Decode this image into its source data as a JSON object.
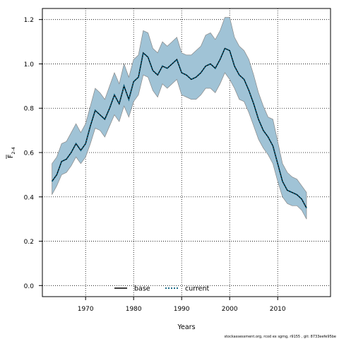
{
  "chart_data": {
    "type": "line",
    "title": "",
    "xlabel": "Years",
    "ylabel_main": "F",
    "ylabel_sub": "2-4",
    "xlim": [
      1961,
      2021
    ],
    "ylim": [
      -0.05,
      1.25
    ],
    "x_ticks": [
      1970,
      1980,
      1990,
      2000,
      2010
    ],
    "y_ticks": [
      0.0,
      0.2,
      0.4,
      0.6,
      0.8,
      1.0,
      1.2
    ],
    "y_tick_labels": [
      "0.0",
      "0.2",
      "0.4",
      "0.6",
      "0.8",
      "1.0",
      "1.2"
    ],
    "grid": true,
    "legend_position": "bottom-center",
    "colors": {
      "band_fill": "#a0c3d6",
      "band_edge": "#888888",
      "base_line": "#000000",
      "current_line": "#005a7a"
    },
    "years": [
      1963,
      1964,
      1965,
      1966,
      1967,
      1968,
      1969,
      1970,
      1971,
      1972,
      1973,
      1974,
      1975,
      1976,
      1977,
      1978,
      1979,
      1980,
      1981,
      1982,
      1983,
      1984,
      1985,
      1986,
      1987,
      1988,
      1989,
      1990,
      1991,
      1992,
      1993,
      1994,
      1995,
      1996,
      1997,
      1998,
      1999,
      2000,
      2001,
      2002,
      2003,
      2004,
      2005,
      2006,
      2007,
      2008,
      2009,
      2010,
      2011,
      2012,
      2013,
      2014,
      2015,
      2016
    ],
    "series": [
      {
        "name": "base",
        "line_style": "solid",
        "values": [
          0.47,
          0.5,
          0.56,
          0.57,
          0.6,
          0.64,
          0.61,
          0.64,
          0.72,
          0.79,
          0.77,
          0.75,
          0.8,
          0.86,
          0.82,
          0.9,
          0.84,
          0.92,
          0.94,
          1.05,
          1.03,
          0.97,
          0.95,
          0.99,
          0.98,
          1.0,
          1.02,
          0.96,
          0.95,
          0.93,
          0.94,
          0.96,
          0.99,
          1.0,
          0.98,
          1.02,
          1.07,
          1.06,
          0.99,
          0.95,
          0.93,
          0.88,
          0.82,
          0.75,
          0.7,
          0.67,
          0.63,
          0.55,
          0.47,
          0.43,
          0.42,
          0.41,
          0.39,
          0.35
        ]
      },
      {
        "name": "current",
        "line_style": "dotted",
        "values": [
          0.47,
          0.5,
          0.56,
          0.57,
          0.6,
          0.64,
          0.61,
          0.64,
          0.72,
          0.79,
          0.77,
          0.75,
          0.8,
          0.86,
          0.82,
          0.9,
          0.84,
          0.92,
          0.94,
          1.05,
          1.03,
          0.97,
          0.95,
          0.99,
          0.98,
          1.0,
          1.02,
          0.96,
          0.95,
          0.93,
          0.94,
          0.96,
          0.99,
          1.0,
          0.98,
          1.02,
          1.07,
          1.06,
          0.99,
          0.95,
          0.93,
          0.88,
          0.82,
          0.75,
          0.7,
          0.67,
          0.63,
          0.55,
          0.47,
          0.43,
          0.42,
          0.41,
          0.39,
          0.35
        ]
      }
    ],
    "band_upper": [
      0.55,
      0.58,
      0.64,
      0.65,
      0.69,
      0.73,
      0.69,
      0.73,
      0.81,
      0.89,
      0.87,
      0.84,
      0.9,
      0.96,
      0.91,
      1.0,
      0.94,
      1.02,
      1.04,
      1.15,
      1.14,
      1.07,
      1.05,
      1.1,
      1.08,
      1.1,
      1.12,
      1.05,
      1.04,
      1.04,
      1.06,
      1.08,
      1.13,
      1.14,
      1.11,
      1.15,
      1.21,
      1.21,
      1.12,
      1.08,
      1.06,
      1.02,
      0.95,
      0.87,
      0.81,
      0.76,
      0.75,
      0.65,
      0.55,
      0.51,
      0.49,
      0.48,
      0.45,
      0.42
    ],
    "band_lower": [
      0.41,
      0.45,
      0.5,
      0.51,
      0.54,
      0.58,
      0.55,
      0.58,
      0.64,
      0.71,
      0.7,
      0.67,
      0.72,
      0.77,
      0.74,
      0.81,
      0.76,
      0.83,
      0.86,
      0.95,
      0.94,
      0.88,
      0.85,
      0.91,
      0.89,
      0.91,
      0.93,
      0.86,
      0.85,
      0.84,
      0.84,
      0.86,
      0.89,
      0.89,
      0.87,
      0.91,
      0.96,
      0.93,
      0.89,
      0.84,
      0.83,
      0.78,
      0.72,
      0.66,
      0.62,
      0.59,
      0.55,
      0.47,
      0.4,
      0.37,
      0.36,
      0.36,
      0.34,
      0.3
    ]
  },
  "legend": {
    "base_label": "base",
    "current_label": "current"
  },
  "footer_text": "stockassessment.org, rcod ex sgmg, r9155 , git: 8733eefe95be"
}
